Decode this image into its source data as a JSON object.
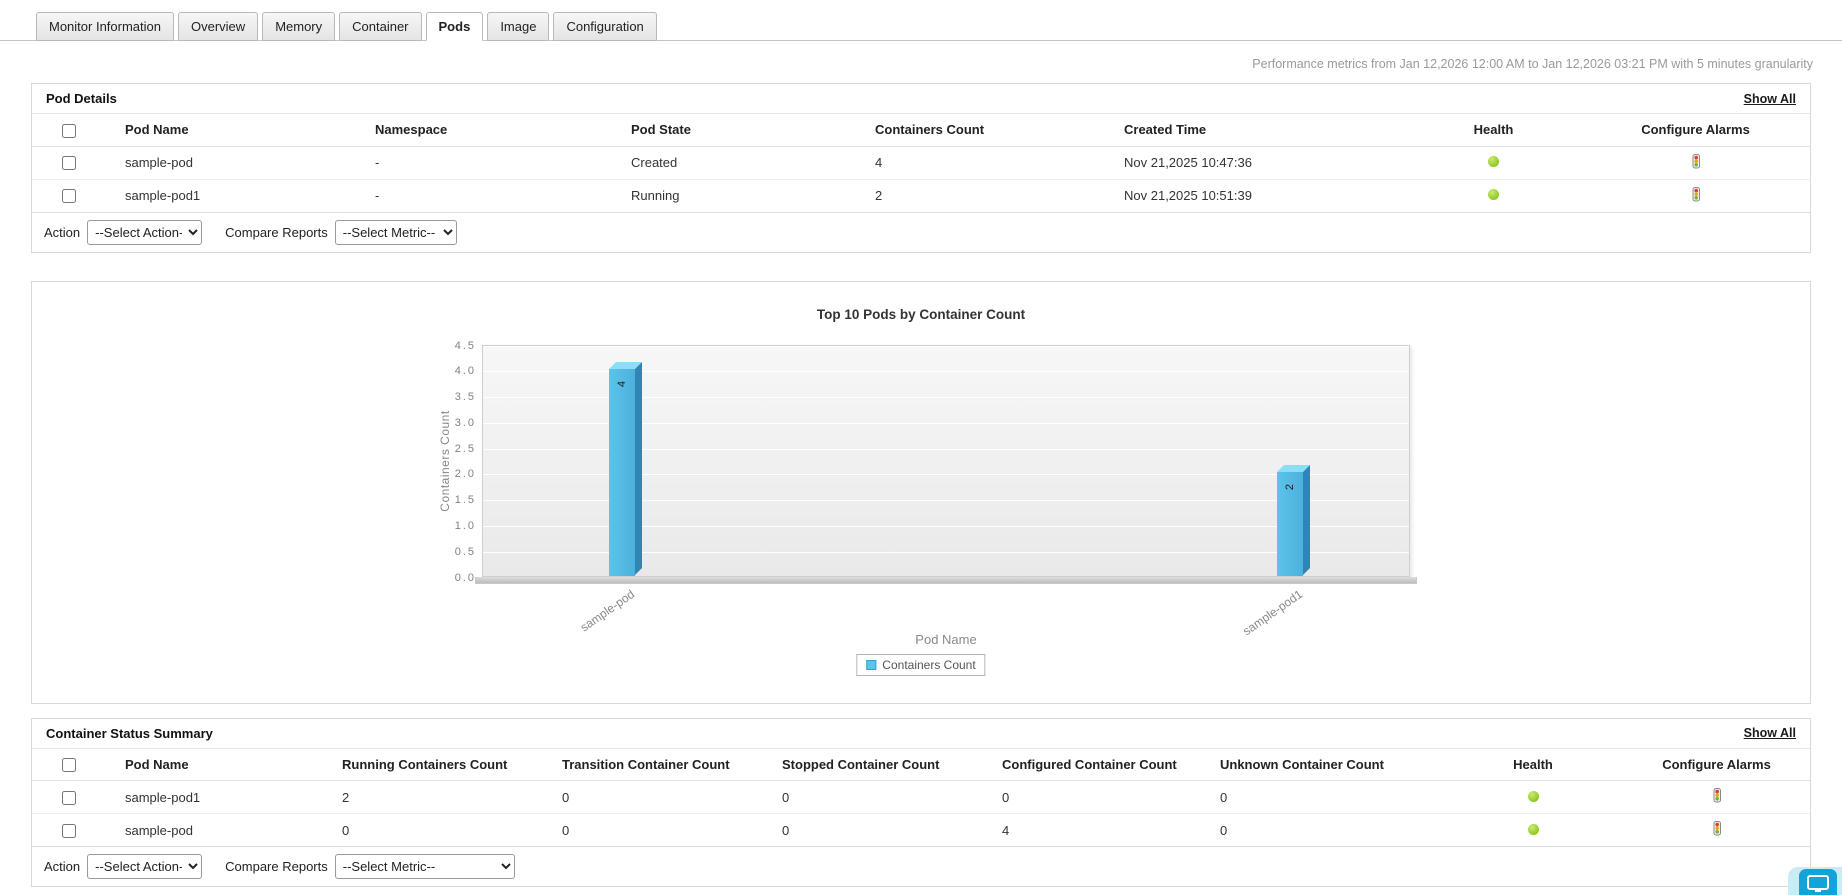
{
  "colors": {
    "bar_blue": "#5bc4ea",
    "health_up_green": "#8dc63f",
    "chat_accent_blue": "#12a3d8"
  },
  "icons": {
    "health": "status-dot",
    "configure_alarms": "traffic-light-icon",
    "chat": "chat-monitor-icon"
  },
  "tabs": {
    "items": [
      {
        "label": "Monitor Information",
        "active": false
      },
      {
        "label": "Overview",
        "active": false
      },
      {
        "label": "Memory",
        "active": false
      },
      {
        "label": "Container",
        "active": false
      },
      {
        "label": "Pods",
        "active": true
      },
      {
        "label": "Image",
        "active": false
      },
      {
        "label": "Configuration",
        "active": false
      }
    ]
  },
  "performance_note": "Performance metrics from Jan 12,2026 12:00 AM to Jan 12,2026 03:21 PM with 5 minutes granularity",
  "pod_details": {
    "title": "Pod Details",
    "show_all": "Show All",
    "columns": [
      "Pod Name",
      "Namespace",
      "Pod State",
      "Containers Count",
      "Created Time",
      "Health",
      "Configure Alarms"
    ],
    "rows": [
      {
        "pod_name": "sample-pod",
        "namespace": "-",
        "pod_state": "Created",
        "containers_count": "4",
        "created_time": "Nov 21,2025 10:47:36",
        "health": "up"
      },
      {
        "pod_name": "sample-pod1",
        "namespace": "-",
        "pod_state": "Running",
        "containers_count": "2",
        "created_time": "Nov 21,2025 10:51:39",
        "health": "up"
      }
    ],
    "action_label": "Action",
    "action_value": "--Select Action--",
    "compare_label": "Compare Reports",
    "compare_value": "--Select Metric--"
  },
  "chart_data": {
    "type": "bar",
    "title": "Top 10 Pods by Container Count",
    "xlabel": "Pod Name",
    "ylabel": "Containers Count",
    "categories": [
      "sample-pod",
      "sample-pod1"
    ],
    "series": [
      {
        "name": "Containers Count",
        "values": [
          4,
          2
        ]
      }
    ],
    "ylim": [
      0,
      4.5
    ],
    "ytick_step": 0.5,
    "grid": true,
    "legend_position": "bottom",
    "bar_color": "#5bc4ea",
    "bar_positions_pct": [
      15,
      87
    ]
  },
  "container_summary": {
    "title": "Container Status Summary",
    "show_all": "Show All",
    "columns": [
      "Pod Name",
      "Running Containers Count",
      "Transition Container Count",
      "Stopped Container Count",
      "Configured Container Count",
      "Unknown Container Count",
      "Health",
      "Configure Alarms"
    ],
    "rows": [
      {
        "pod_name": "sample-pod1",
        "running": "2",
        "transition": "0",
        "stopped": "0",
        "configured": "0",
        "unknown": "0",
        "health": "up"
      },
      {
        "pod_name": "sample-pod",
        "running": "0",
        "transition": "0",
        "stopped": "0",
        "configured": "4",
        "unknown": "0",
        "health": "up"
      }
    ],
    "action_label": "Action",
    "action_value": "--Select Action--",
    "compare_label": "Compare Reports",
    "compare_value": "--Select Metric--"
  }
}
